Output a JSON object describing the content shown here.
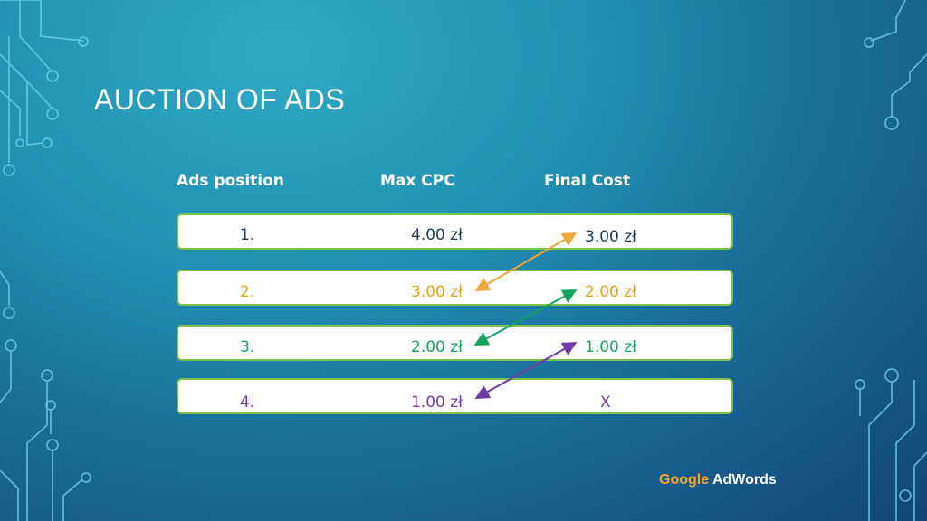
{
  "slide": {
    "title": "AUCTION OF ADS",
    "headers": {
      "position": "Ads position",
      "max_cpc": "Max CPC",
      "final_cost": "Final Cost"
    },
    "rows": [
      {
        "position": "1.",
        "max_cpc": "4.00 zł",
        "final_cost": "3.00 zł",
        "color": "#1f3b57"
      },
      {
        "position": "2.",
        "max_cpc": "3.00 zł",
        "final_cost": "2.00 zł",
        "color": "#e2a21f"
      },
      {
        "position": "3.",
        "max_cpc": "2.00 zł",
        "final_cost": "1.00 zł",
        "color": "#17a35a"
      },
      {
        "position": "4.",
        "max_cpc": "1.00 zł",
        "final_cost": "X",
        "color": "#7a3aa8"
      }
    ],
    "arrow_colors": [
      "#f0a63a",
      "#14a35c",
      "#6f3aa8"
    ],
    "brand": {
      "google": "Google",
      "adwords": "AdWords"
    }
  }
}
